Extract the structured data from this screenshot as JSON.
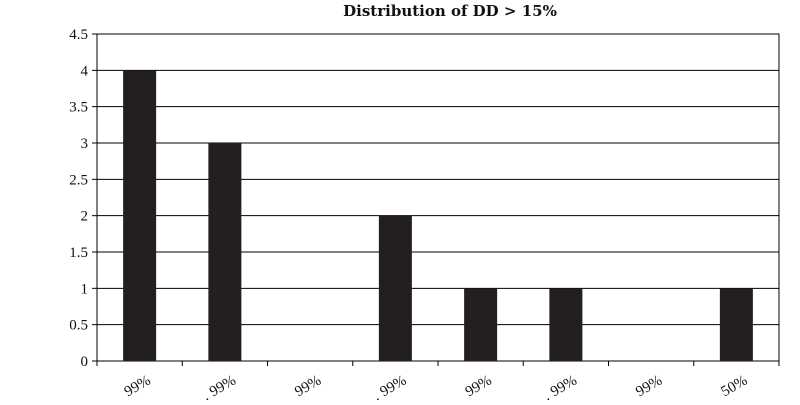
{
  "chart_data": {
    "type": "bar",
    "title": "Distribution of DD > 15%",
    "xlabel": "",
    "ylabel": "",
    "categories": [
      "99%",
      "99%",
      "99%",
      "99%",
      "99%",
      "99%",
      "99%",
      "50%"
    ],
    "category_labels_visible": [
      "99%",
      "… 99%",
      "99%",
      "… 99%",
      "99%",
      "… 99%",
      "99%",
      "50%"
    ],
    "values": [
      4,
      3,
      0,
      2,
      1,
      1,
      0,
      1
    ],
    "ylim": [
      0,
      4.5
    ],
    "yticks": [
      0,
      0.5,
      1,
      1.5,
      2,
      2.5,
      3,
      3.5,
      4,
      4.5
    ],
    "ytick_labels": [
      "0",
      "0.5",
      "1",
      "1.5",
      "2",
      "2.5",
      "3",
      "3.5",
      "4",
      "4.5"
    ],
    "grid": "horizontal",
    "legend": "none",
    "colors": {
      "bar": "#231f20",
      "grid": "#000000",
      "axis": "#000000"
    }
  }
}
